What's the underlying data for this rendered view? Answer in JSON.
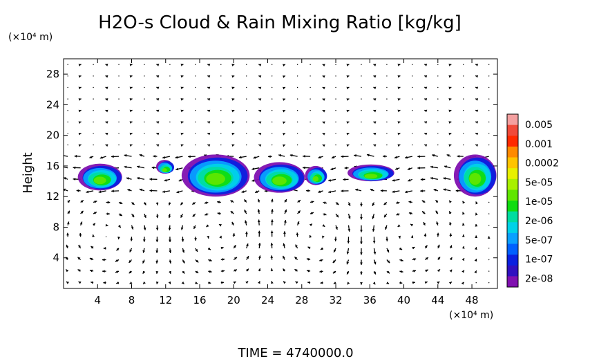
{
  "chart_data": {
    "type": "heatmap",
    "title": "H2O-s Cloud & Rain Mixing Ratio [kg/kg]",
    "ylabel": "Height",
    "y_unit": "(×10⁴ m)",
    "x_unit": "(×10⁴ m)",
    "time_label": "TIME  =  4740000.0",
    "xlim": [
      0,
      51
    ],
    "ylim": [
      0,
      30
    ],
    "x_ticks": [
      4,
      8,
      12,
      16,
      20,
      24,
      28,
      32,
      36,
      40,
      44,
      48
    ],
    "y_ticks": [
      4,
      8,
      12,
      16,
      20,
      24,
      28
    ],
    "overlay": "wind vectors",
    "colorbar": {
      "labels": [
        "0.005",
        "0.001",
        "0.0002",
        "5e-05",
        "1e-05",
        "2e-06",
        "5e-07",
        "1e-07",
        "2e-08"
      ],
      "colors": [
        "#f4a0a0",
        "#f04a3a",
        "#ff2a00",
        "#ff8a00",
        "#ffc400",
        "#e8f000",
        "#a8f000",
        "#60e600",
        "#10dc10",
        "#00dca0",
        "#00d2e8",
        "#0aa0ff",
        "#0060ff",
        "#0a20e0",
        "#3010c0",
        "#8010b0"
      ]
    },
    "cloud_regions": [
      {
        "x": [
          1.8,
          7.0
        ],
        "y": [
          12.8,
          16.3
        ]
      },
      {
        "x": [
          11.0,
          13.0
        ],
        "y": [
          15.0,
          16.8
        ]
      },
      {
        "x": [
          14.0,
          22.0
        ],
        "y": [
          12.0,
          17.5
        ]
      },
      {
        "x": [
          22.5,
          28.5
        ],
        "y": [
          12.5,
          16.5
        ]
      },
      {
        "x": [
          28.5,
          31.0
        ],
        "y": [
          13.5,
          16.0
        ]
      },
      {
        "x": [
          33.5,
          39.0
        ],
        "y": [
          14.0,
          16.2
        ]
      },
      {
        "x": [
          46.0,
          51.0
        ],
        "y": [
          12.0,
          17.5
        ]
      }
    ]
  }
}
